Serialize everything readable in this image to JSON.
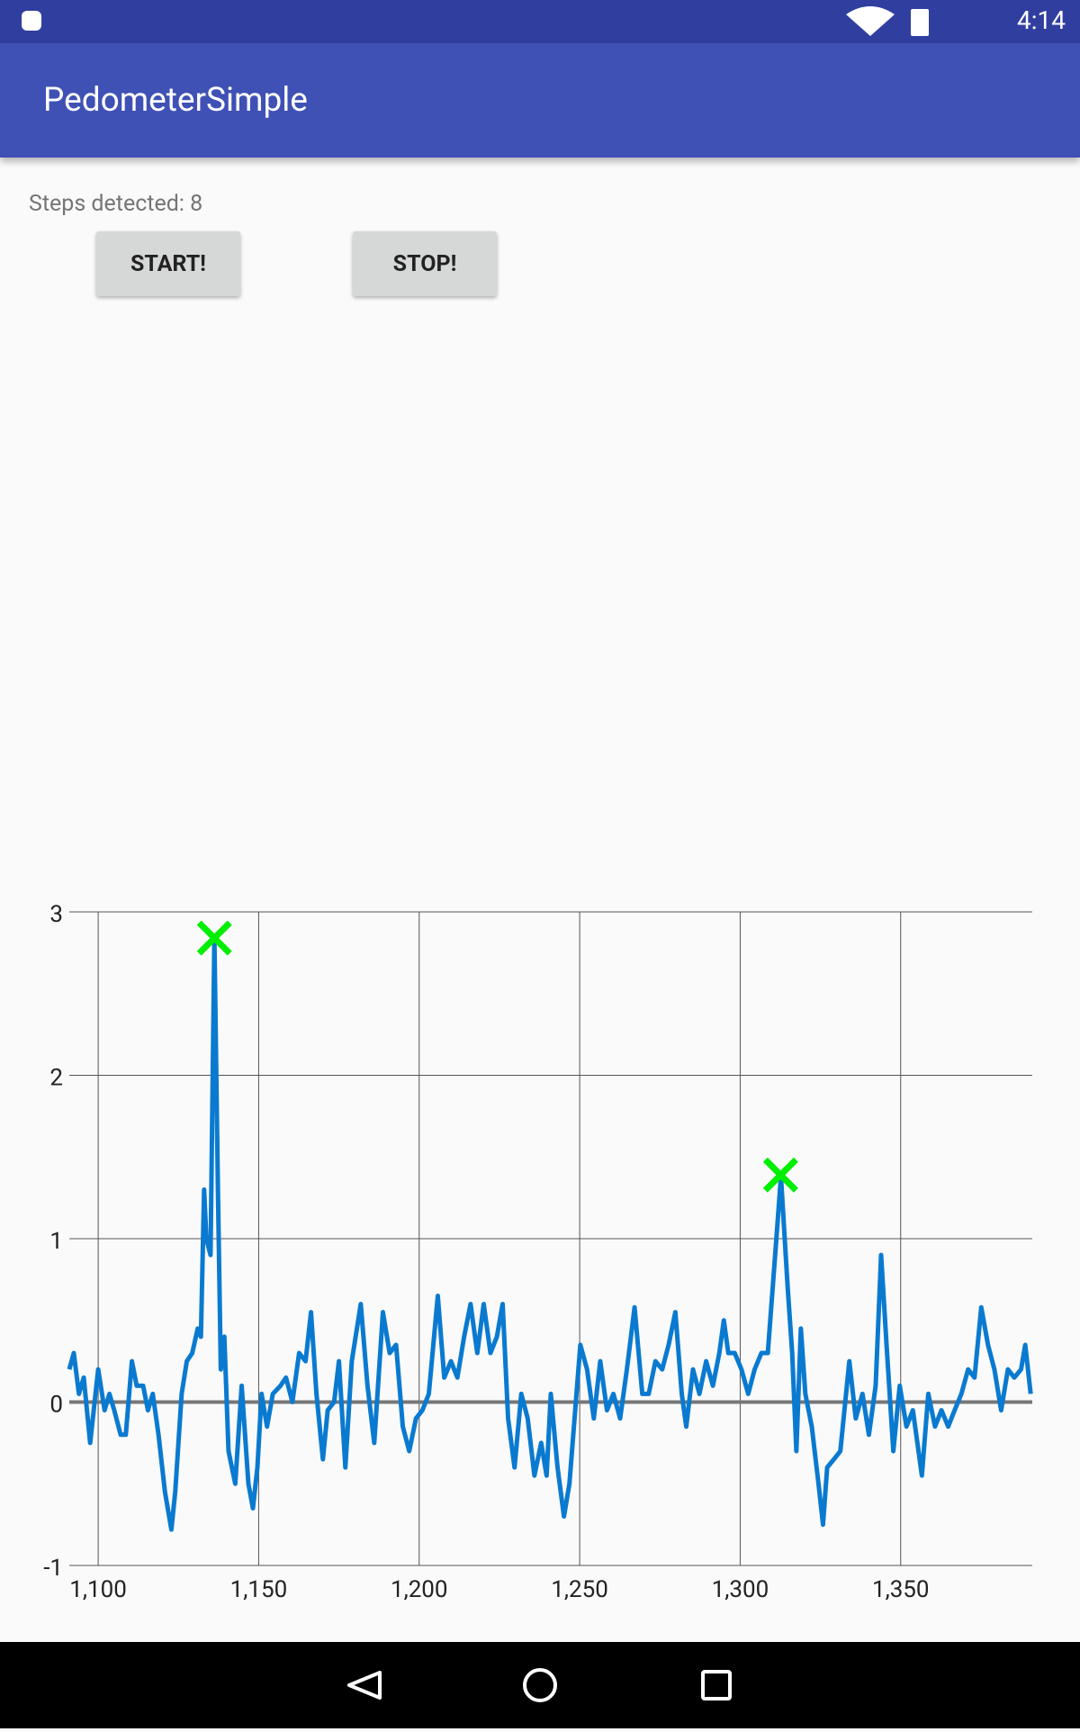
{
  "status_bar": {
    "time": "4:14"
  },
  "app_bar": {
    "title": "PedometerSimple"
  },
  "steps_label": "Steps detected: 8",
  "buttons": [
    "START!",
    "STOP!"
  ],
  "chart_data": {
    "type": "line",
    "xlim": [
      1091,
      1391
    ],
    "ylim": [
      -1,
      3
    ],
    "xticks": [
      {
        "value": 1100,
        "label": "1,100"
      },
      {
        "value": 1150,
        "label": "1,150"
      },
      {
        "value": 1200,
        "label": "1,200"
      },
      {
        "value": 1250,
        "label": "1,250"
      },
      {
        "value": 1300,
        "label": "1,300"
      },
      {
        "value": 1350,
        "label": "1,350"
      }
    ],
    "yticks": [
      -1,
      0,
      1,
      2,
      3
    ],
    "grid": true,
    "series": [
      {
        "color": "#0a7ad0",
        "x": [
          1091,
          1092.4,
          1094,
          1095.5,
          1097.5,
          1100,
          1102,
          1103.5,
          1105,
          1107,
          1108.6,
          1110.5,
          1112,
          1114,
          1115.5,
          1117,
          1118.8,
          1120.8,
          1122.8,
          1124,
          1126,
          1127.6,
          1129.3,
          1131,
          1132,
          1133,
          1133.7,
          1135,
          1136.2,
          1137.3,
          1138.2,
          1139.3,
          1140.6,
          1142.7,
          1144.7,
          1146.8,
          1148.2,
          1149.6,
          1150.9,
          1152.6,
          1154.4,
          1156.8,
          1158.5,
          1160.5,
          1162.6,
          1164.6,
          1166.3,
          1168,
          1170,
          1171.5,
          1173.5,
          1175,
          1177,
          1179,
          1181.8,
          1183.9,
          1186,
          1188.7,
          1190.8,
          1192.8,
          1194.9,
          1196.9,
          1199,
          1201,
          1203,
          1205.8,
          1207.8,
          1209.9,
          1211.9,
          1214,
          1216,
          1218.1,
          1220.1,
          1222.2,
          1224.2,
          1226,
          1227.7,
          1229.7,
          1231.8,
          1233.8,
          1235.9,
          1238,
          1239.7,
          1241,
          1243.1,
          1245.1,
          1246.8,
          1248.2,
          1250.2,
          1252.3,
          1254.4,
          1256.4,
          1258.5,
          1260.5,
          1262.6,
          1264.7,
          1267.1,
          1269.5,
          1271.5,
          1273.6,
          1275.7,
          1277.7,
          1279.8,
          1281.8,
          1283.2,
          1285.3,
          1287.3,
          1289.4,
          1291.5,
          1293.5,
          1294.9,
          1296.3,
          1298.3,
          1300.4,
          1302.5,
          1304.5,
          1306.6,
          1308.6,
          1310.7,
          1312.7,
          1314.8,
          1316.2,
          1317.5,
          1318.9,
          1320.3,
          1322.3,
          1324.4,
          1325.8,
          1327.1,
          1329.2,
          1331.2,
          1334,
          1336,
          1338.1,
          1340.1,
          1342.2,
          1343.9,
          1345.6,
          1347.7,
          1349.7,
          1351.8,
          1353.8,
          1356.6,
          1358.6,
          1360.7,
          1362.7,
          1364.8,
          1366.8,
          1368.9,
          1371,
          1373,
          1375.1,
          1377.2,
          1379.2,
          1381.3,
          1383.4,
          1385.4,
          1387.5,
          1388.8,
          1390.5
        ],
        "values": [
          0.2,
          0.3,
          0.05,
          0.15,
          -0.25,
          0.2,
          -0.05,
          0.05,
          -0.05,
          -0.2,
          -0.2,
          0.25,
          0.1,
          0.1,
          -0.05,
          0.05,
          -0.2,
          -0.55,
          -0.78,
          -0.55,
          0.05,
          0.25,
          0.3,
          0.45,
          0.4,
          1.3,
          1.0,
          0.9,
          2.85,
          1.3,
          0.2,
          0.4,
          -0.3,
          -0.5,
          0.1,
          -0.5,
          -0.65,
          -0.4,
          0.05,
          -0.15,
          0.05,
          0.1,
          0.15,
          0,
          0.3,
          0.25,
          0.55,
          0.05,
          -0.35,
          -0.05,
          0,
          0.25,
          -0.4,
          0.25,
          0.6,
          0.1,
          -0.25,
          0.55,
          0.3,
          0.35,
          -0.15,
          -0.3,
          -0.1,
          -0.05,
          0.05,
          0.65,
          0.15,
          0.25,
          0.15,
          0.4,
          0.6,
          0.3,
          0.6,
          0.3,
          0.4,
          0.6,
          -0.1,
          -0.4,
          0.05,
          -0.1,
          -0.45,
          -0.25,
          -0.45,
          0.05,
          -0.4,
          -0.7,
          -0.5,
          -0.15,
          0.35,
          0.2,
          -0.1,
          0.25,
          -0.05,
          0.05,
          -0.1,
          0.2,
          0.58,
          0.05,
          0.05,
          0.25,
          0.2,
          0.35,
          0.55,
          0.05,
          -0.15,
          0.2,
          0.05,
          0.25,
          0.1,
          0.3,
          0.5,
          0.3,
          0.3,
          0.2,
          0.05,
          0.2,
          0.3,
          0.3,
          0.85,
          1.38,
          0.7,
          0.3,
          -0.3,
          0.45,
          0.05,
          -0.15,
          -0.5,
          -0.75,
          -0.4,
          -0.35,
          -0.3,
          0.25,
          -0.1,
          0.05,
          -0.2,
          0.1,
          0.9,
          0.35,
          -0.3,
          0.1,
          -0.15,
          -0.05,
          -0.45,
          0.05,
          -0.15,
          -0.05,
          -0.15,
          -0.05,
          0.05,
          0.2,
          0.15,
          0.58,
          0.35,
          0.2,
          -0.05,
          0.2,
          0.15,
          0.2,
          0.35,
          0.05
        ]
      },
      {
        "color": "#00ee00",
        "marker": "x",
        "x": [
          1136.2,
          1312.6
        ],
        "values": [
          2.84,
          1.39
        ]
      }
    ]
  }
}
